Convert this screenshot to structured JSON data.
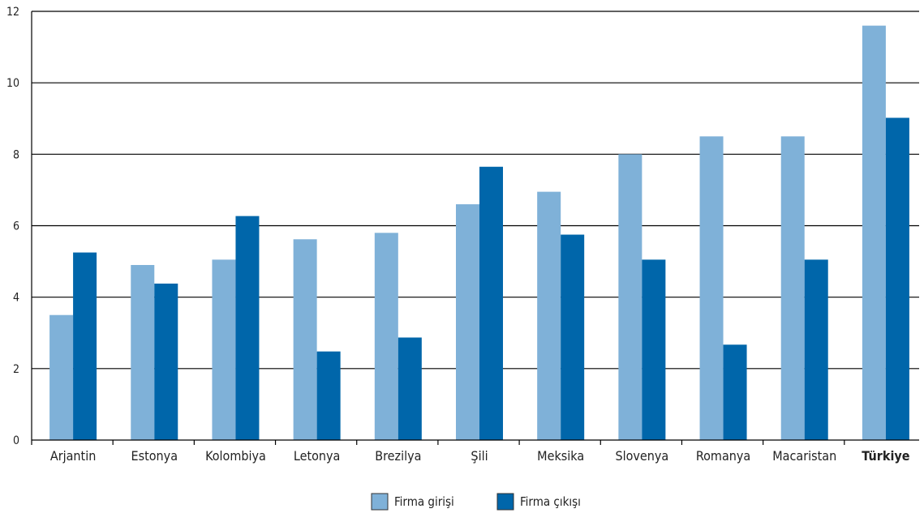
{
  "chart_data": {
    "type": "bar",
    "title": "",
    "xlabel": "",
    "ylabel": "",
    "categories": [
      "Arjantin",
      "Estonya",
      "Kolombiya",
      "Letonya",
      "Brezilya",
      "Şili",
      "Meksika",
      "Slovenya",
      "Romanya",
      "Macaristan",
      "Türkiye"
    ],
    "highlight_category": "Türkiye",
    "series": [
      {
        "name": "Firma girişi",
        "color": "#7fb1d8",
        "values": [
          3.5,
          4.9,
          5.05,
          5.62,
          5.8,
          6.6,
          6.95,
          8.0,
          8.5,
          8.5,
          11.6
        ]
      },
      {
        "name": "Firma çıkışı",
        "color": "#0066aa",
        "values": [
          5.25,
          4.38,
          6.27,
          2.48,
          2.87,
          7.65,
          5.75,
          5.05,
          2.67,
          5.05,
          9.02
        ]
      }
    ],
    "ylim": [
      0,
      12
    ],
    "yticks": [
      "0",
      "2",
      "4",
      "6",
      "8",
      "10",
      "12"
    ],
    "grid": true,
    "legend_position": "bottom-center"
  }
}
